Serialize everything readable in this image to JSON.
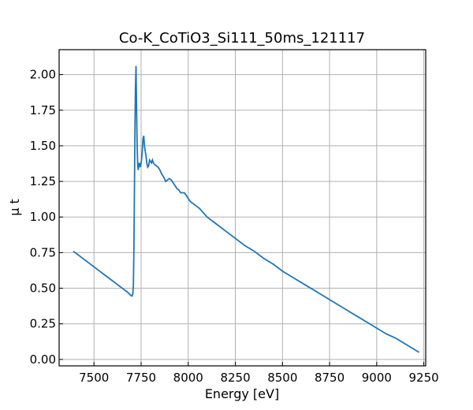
{
  "chart_data": {
    "type": "line",
    "title": "Co-K_CoTiO3_Si111_50ms_121117",
    "xlabel": "Energy [eV]",
    "ylabel": "μ t",
    "xlim": [
      7315,
      9260
    ],
    "ylim": [
      -0.045,
      2.175
    ],
    "xticks": [
      7500,
      7750,
      8000,
      8250,
      8500,
      8750,
      9000,
      9250
    ],
    "yticks": [
      0.0,
      0.25,
      0.5,
      0.75,
      1.0,
      1.25,
      1.5,
      1.75,
      2.0
    ],
    "xtick_labels": [
      "7500",
      "7750",
      "8000",
      "8250",
      "8500",
      "8750",
      "9000",
      "9250"
    ],
    "ytick_labels": [
      "0.00",
      "0.25",
      "0.50",
      "0.75",
      "1.00",
      "1.25",
      "1.50",
      "1.75",
      "2.00"
    ],
    "grid": true,
    "line_color": "#1f77b4",
    "series": [
      {
        "x": [
          7390,
          7450,
          7500,
          7550,
          7600,
          7650,
          7680,
          7695,
          7702,
          7706,
          7709,
          7712,
          7715,
          7718,
          7720,
          7723,
          7726,
          7729,
          7732,
          7735,
          7738,
          7741,
          7744,
          7748,
          7752,
          7756,
          7760,
          7764,
          7768,
          7772,
          7776,
          7780,
          7785,
          7790,
          7795,
          7800,
          7805,
          7810,
          7815,
          7820,
          7830,
          7840,
          7850,
          7860,
          7870,
          7880,
          7890,
          7900,
          7910,
          7920,
          7930,
          7940,
          7950,
          7960,
          7970,
          7980,
          7990,
          8000,
          8010,
          8020,
          8030,
          8040,
          8060,
          8080,
          8100,
          8120,
          8150,
          8200,
          8250,
          8300,
          8350,
          8400,
          8450,
          8500,
          8550,
          8600,
          8650,
          8700,
          8750,
          8800,
          8850,
          8900,
          8950,
          9000,
          9050,
          9100,
          9150,
          9200,
          9225
        ],
        "y": [
          0.76,
          0.7,
          0.65,
          0.6,
          0.55,
          0.5,
          0.47,
          0.45,
          0.445,
          0.46,
          0.52,
          0.8,
          1.25,
          1.7,
          1.9,
          2.06,
          1.75,
          1.5,
          1.36,
          1.33,
          1.38,
          1.35,
          1.37,
          1.36,
          1.4,
          1.46,
          1.55,
          1.57,
          1.5,
          1.46,
          1.43,
          1.38,
          1.35,
          1.36,
          1.4,
          1.39,
          1.38,
          1.4,
          1.38,
          1.37,
          1.36,
          1.35,
          1.33,
          1.3,
          1.28,
          1.25,
          1.26,
          1.27,
          1.26,
          1.24,
          1.22,
          1.2,
          1.19,
          1.17,
          1.17,
          1.17,
          1.15,
          1.13,
          1.11,
          1.1,
          1.09,
          1.08,
          1.06,
          1.03,
          1.0,
          0.98,
          0.95,
          0.9,
          0.85,
          0.8,
          0.76,
          0.71,
          0.67,
          0.62,
          0.58,
          0.54,
          0.5,
          0.46,
          0.42,
          0.38,
          0.34,
          0.3,
          0.26,
          0.22,
          0.18,
          0.15,
          0.11,
          0.07,
          0.05
        ]
      }
    ]
  }
}
